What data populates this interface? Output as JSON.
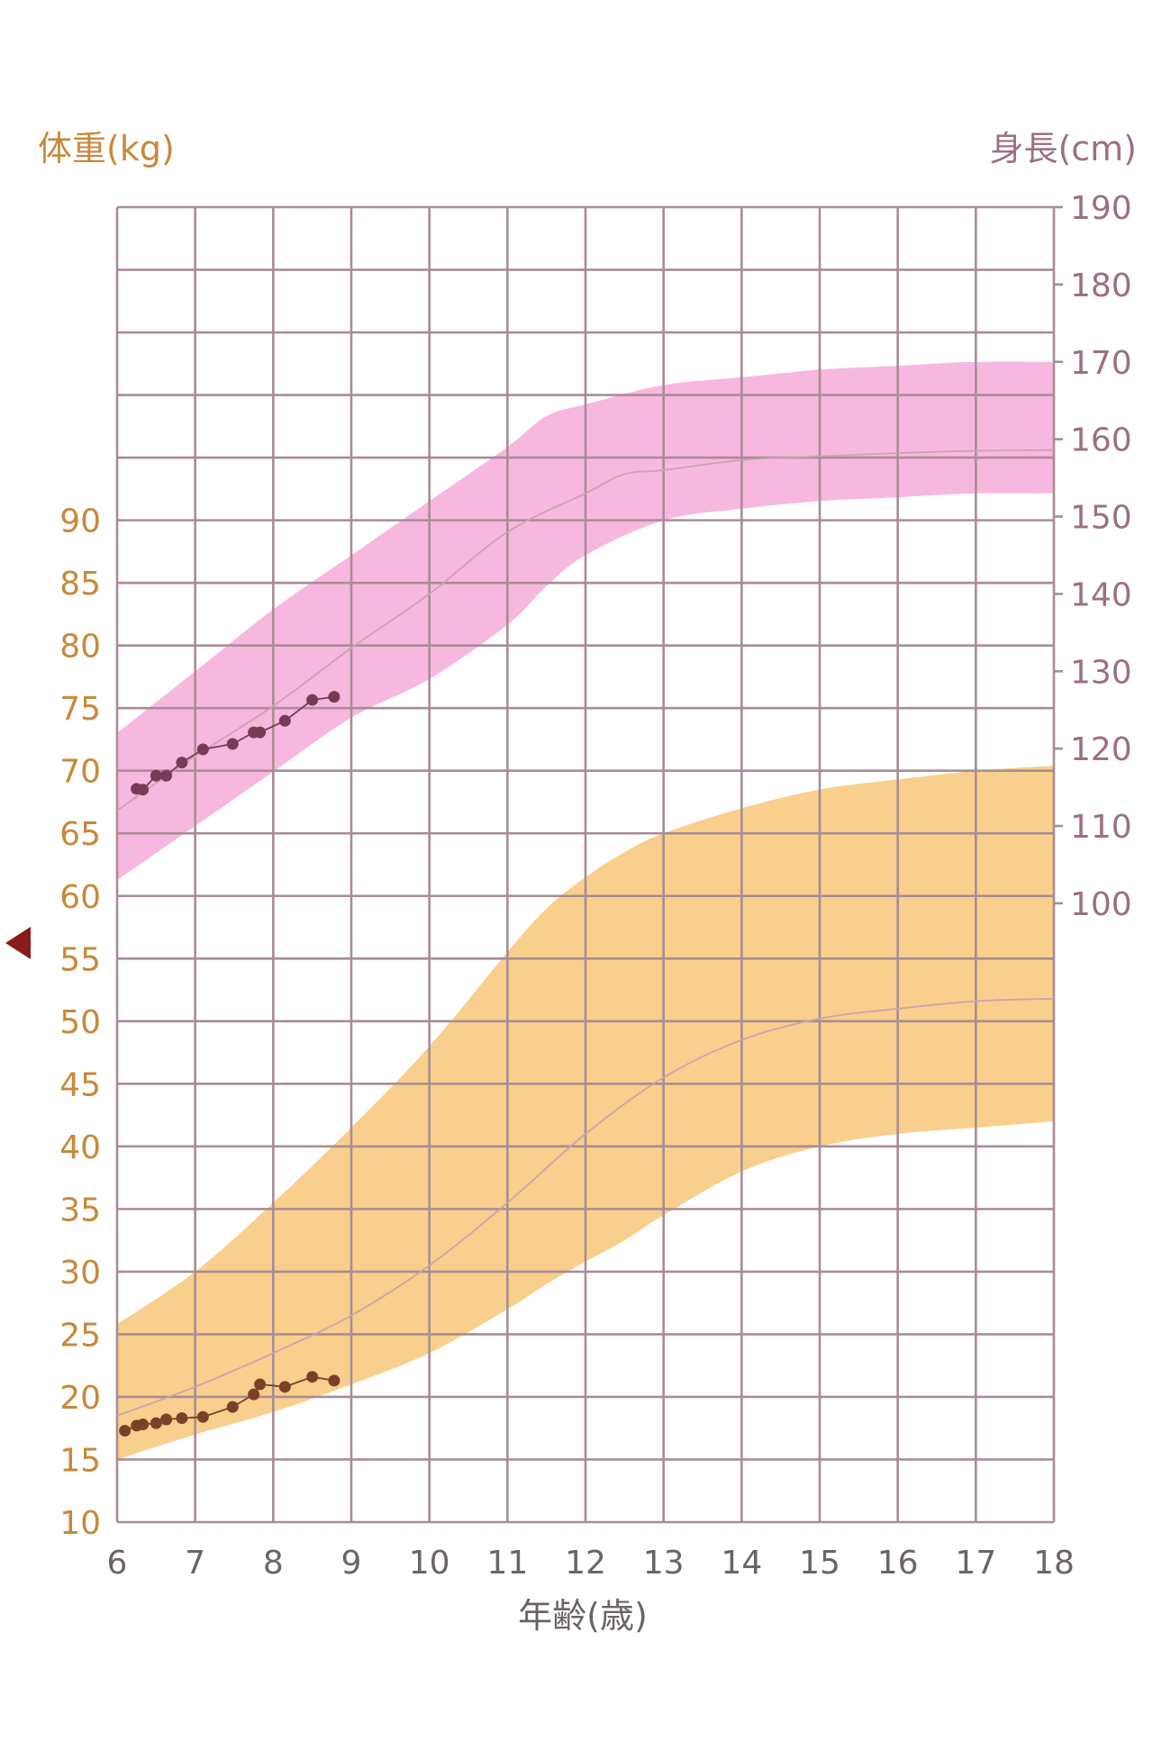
{
  "colors": {
    "weight_axis": "#c8893a",
    "height_axis": "#9c7080",
    "grid": "#a98c95",
    "height_band": "#f7b8df",
    "weight_band": "#f8cf8c",
    "median_line": "#c9a5ad",
    "height_points": "#7a3a55",
    "weight_points": "#7a4028",
    "marker": "#8b1a1a"
  },
  "chart_data": {
    "type": "line",
    "title": "",
    "xlabel": "年齢(歳)",
    "ylabel_left": "体重(kg)",
    "ylabel_right": "身長(cm)",
    "xlim": [
      6,
      18
    ],
    "xticks": [
      6,
      7,
      8,
      9,
      10,
      11,
      12,
      13,
      14,
      15,
      16,
      17,
      18
    ],
    "weight_axis": {
      "ylim": [
        10,
        115
      ],
      "ticks": [
        10,
        15,
        20,
        25,
        30,
        35,
        40,
        45,
        50,
        55,
        60,
        65,
        70,
        75,
        80,
        85,
        90
      ]
    },
    "height_axis": {
      "ylim": [
        20,
        190
      ],
      "ticks": [
        100,
        110,
        120,
        130,
        140,
        150,
        160,
        170,
        180,
        190
      ]
    },
    "grid": true,
    "bands": [
      {
        "name": "height",
        "axis": "height",
        "x": [
          6,
          7,
          8,
          9,
          10,
          11,
          11.5,
          12,
          13,
          14,
          15,
          16,
          17,
          18
        ],
        "upper": [
          122,
          130,
          138,
          145,
          152,
          159,
          163,
          164.5,
          167,
          168,
          169,
          169.5,
          170,
          170
        ],
        "lower": [
          103,
          110,
          117,
          124,
          129,
          136,
          141,
          145,
          149.5,
          151,
          152,
          152.5,
          153,
          153
        ]
      },
      {
        "name": "weight",
        "axis": "weight",
        "x": [
          6,
          7,
          8,
          9,
          10,
          11,
          11.5,
          12,
          12.5,
          13,
          14,
          15,
          16,
          17,
          18
        ],
        "upper": [
          25.8,
          30,
          35.5,
          41.5,
          48,
          55.5,
          59,
          61.5,
          63.5,
          65,
          67,
          68.5,
          69.3,
          70,
          70.4
        ],
        "lower": [
          15,
          17,
          18.8,
          21,
          23.5,
          27,
          29,
          30.8,
          32.5,
          34.5,
          38,
          40,
          41,
          41.5,
          42
        ]
      }
    ],
    "series": [
      {
        "name": "height_median",
        "axis": "height",
        "x": [
          6,
          7,
          8,
          9,
          10,
          11,
          12,
          12.5,
          13,
          14,
          15,
          16,
          17,
          18
        ],
        "y": [
          112,
          119,
          125.5,
          133,
          140,
          148,
          153,
          155.5,
          156,
          157.3,
          157.8,
          158.2,
          158.5,
          158.6
        ]
      },
      {
        "name": "weight_median",
        "axis": "weight",
        "x": [
          6,
          7,
          8,
          9,
          10,
          11,
          12,
          13,
          14,
          15,
          16,
          17,
          18
        ],
        "y": [
          18.5,
          20.8,
          23.5,
          26.5,
          30.5,
          35.5,
          41,
          45.5,
          48.5,
          50.2,
          51,
          51.6,
          51.8
        ]
      },
      {
        "name": "height_measured",
        "axis": "height",
        "x": [
          6.25,
          6.33,
          6.5,
          6.63,
          6.83,
          7.1,
          7.48,
          7.75,
          7.83,
          8.15,
          8.5,
          8.78
        ],
        "y": [
          114.8,
          114.7,
          116.5,
          116.5,
          118.2,
          119.9,
          120.6,
          122.1,
          122.1,
          123.6,
          126.3,
          126.7
        ]
      },
      {
        "name": "weight_measured",
        "axis": "weight",
        "x": [
          6.1,
          6.25,
          6.33,
          6.5,
          6.63,
          6.83,
          7.1,
          7.48,
          7.75,
          7.83,
          8.15,
          8.5,
          8.78
        ],
        "y": [
          17.3,
          17.7,
          17.8,
          17.9,
          18.2,
          18.3,
          18.4,
          19.2,
          20.2,
          21.0,
          20.8,
          21.6,
          21.3
        ]
      }
    ]
  }
}
